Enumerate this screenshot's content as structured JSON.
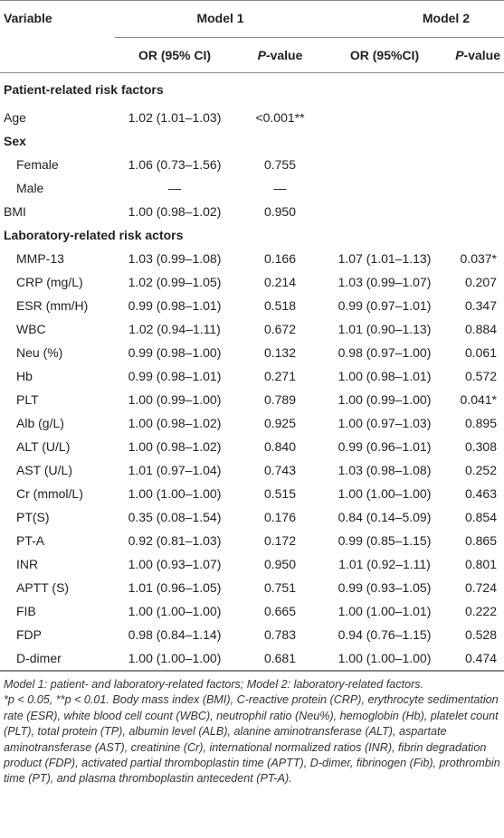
{
  "header": {
    "variable": "Variable",
    "model1": "Model 1",
    "model2": "Model 2",
    "or_ci_1": "OR (95% CI)",
    "or_ci_2": "OR (95%CI)",
    "p_italic": "P",
    "p_suffix": "-value"
  },
  "sections": {
    "patient": "Patient-related risk factors",
    "sex": "Sex",
    "laboratory": "Laboratory-related risk actors"
  },
  "rows": {
    "age": {
      "label": "Age",
      "or1": "1.02 (1.01–1.03)",
      "p1": "<0.001**"
    },
    "female": {
      "label": "Female",
      "or1": "1.06 (0.73–1.56)",
      "p1": "0.755"
    },
    "male": {
      "label": "Male",
      "or1": "—",
      "p1": "—"
    },
    "bmi": {
      "label": "BMI",
      "or1": "1.00 (0.98–1.02)",
      "p1": "0.950"
    }
  },
  "lab_rows": [
    {
      "label": "MMP-13",
      "or1": "1.03 (0.99–1.08)",
      "p1": "0.166",
      "or2": "1.07 (1.01–1.13)",
      "p2": "0.037*"
    },
    {
      "label": "CRP (mg/L)",
      "or1": "1.02 (0.99–1.05)",
      "p1": "0.214",
      "or2": "1.03 (0.99–1.07)",
      "p2": "0.207"
    },
    {
      "label": "ESR (mm/H)",
      "or1": "0.99 (0.98–1.01)",
      "p1": "0.518",
      "or2": "0.99 (0.97–1.01)",
      "p2": "0.347"
    },
    {
      "label": "WBC",
      "or1": "1.02 (0.94–1.11)",
      "p1": "0.672",
      "or2": "1.01 (0.90–1.13)",
      "p2": "0.884"
    },
    {
      "label": "Neu (%)",
      "or1": "0.99 (0.98–1.00)",
      "p1": "0.132",
      "or2": "0.98 (0.97–1.00)",
      "p2": "0.061"
    },
    {
      "label": "Hb",
      "or1": "0.99 (0.98–1.01)",
      "p1": "0.271",
      "or2": "1.00 (0.98–1.01)",
      "p2": "0.572"
    },
    {
      "label": "PLT",
      "or1": "1.00 (0.99–1.00)",
      "p1": "0.789",
      "or2": "1.00 (0.99–1.00)",
      "p2": "0.041*"
    },
    {
      "label": "Alb (g/L)",
      "or1": "1.00 (0.98–1.02)",
      "p1": "0.925",
      "or2": "1.00 (0.97–1.03)",
      "p2": "0.895"
    },
    {
      "label": "ALT (U/L)",
      "or1": "1.00 (0.98–1.02)",
      "p1": "0.840",
      "or2": "0.99 (0.96–1.01)",
      "p2": "0.308"
    },
    {
      "label": "AST (U/L)",
      "or1": "1.01 (0.97–1.04)",
      "p1": "0.743",
      "or2": "1.03 (0.98–1.08)",
      "p2": "0.252"
    },
    {
      "label": "Cr (mmol/L)",
      "or1": "1.00 (1.00–1.00)",
      "p1": "0.515",
      "or2": "1.00 (1.00–1.00)",
      "p2": "0.463"
    },
    {
      "label": "PT(S)",
      "or1": "0.35 (0.08–1.54)",
      "p1": "0.176",
      "or2": "0.84 (0.14–5.09)",
      "p2": "0.854"
    },
    {
      "label": "PT-A",
      "or1": "0.92 (0.81–1.03)",
      "p1": "0.172",
      "or2": "0.99 (0.85–1.15)",
      "p2": "0.865"
    },
    {
      "label": "INR",
      "or1": "1.00 (0.93–1.07)",
      "p1": "0.950",
      "or2": "1.01 (0.92–1.11)",
      "p2": "0.801"
    },
    {
      "label": "APTT (S)",
      "or1": "1.01 (0.96–1.05)",
      "p1": "0.751",
      "or2": "0.99 (0.93–1.05)",
      "p2": "0.724"
    },
    {
      "label": "FIB",
      "or1": "1.00 (1.00–1.00)",
      "p1": "0.665",
      "or2": "1.00 (1.00–1.01)",
      "p2": "0.222"
    },
    {
      "label": "FDP",
      "or1": "0.98 (0.84–1.14)",
      "p1": "0.783",
      "or2": "0.94 (0.76–1.15)",
      "p2": "0.528"
    },
    {
      "label": "D-dimer",
      "or1": "1.00 (1.00–1.00)",
      "p1": "0.681",
      "or2": "1.00 (1.00–1.00)",
      "p2": "0.474"
    }
  ],
  "footnote": {
    "line1": "Model 1: patient- and laboratory-related factors; Model 2: laboratory-related factors.",
    "line2": "*p < 0.05, **p < 0.01. Body mass index (BMI), C-reactive protein (CRP), erythrocyte sedimentation rate (ESR), white blood cell count (WBC), neutrophil ratio (Neu%), hemoglobin (Hb), platelet count (PLT), total protein (TP), albumin level (ALB), alanine aminotransferase (ALT), aspartate aminotransferase (AST), creatinine (Cr), international normalized ratios (INR), fibrin degradation product (FDP), activated partial thromboplastin time (APTT), D-dimer, fibrinogen (Fib), prothrombin time (PT), and plasma thromboplastin antecedent (PT-A)."
  }
}
